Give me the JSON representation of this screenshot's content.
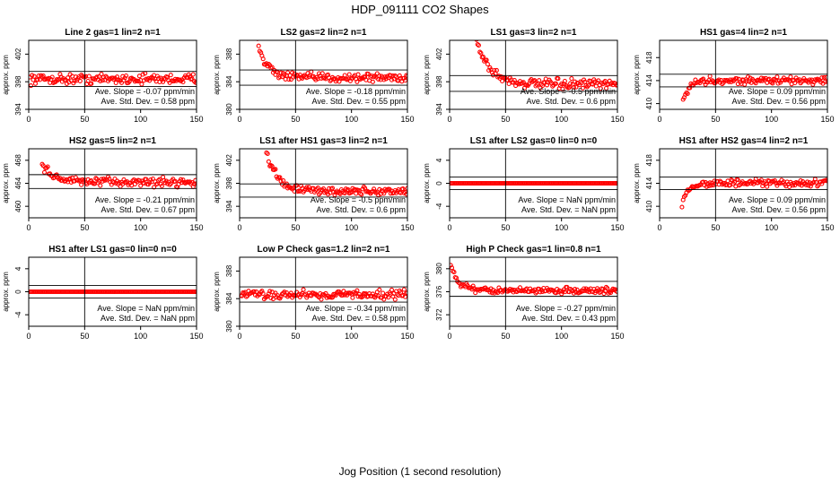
{
  "title": "HDP_091111  CO2 Shapes",
  "xlabel": "Jog Position (1 second resolution)",
  "ylabel": "approx. ppm",
  "slope_prefix": "Ave. Slope = ",
  "slope_unit": " ppm/min",
  "std_prefix": "Ave. Std. Dev. = ",
  "std_unit": " ppm",
  "colors": {
    "points": "#ff0000",
    "axis": "#000000"
  },
  "chart_data": [
    {
      "type": "scatter",
      "title": "Line 2 gas=1 lin=2 n=1",
      "xlim": [
        0,
        150
      ],
      "ylim": [
        394,
        404
      ],
      "xticks": [
        0,
        50,
        100,
        150
      ],
      "yticks": [
        394,
        398,
        402
      ],
      "vline": 50,
      "hlines": [
        397.3,
        399.5
      ],
      "start": 1,
      "base": 398.4,
      "decay": 0,
      "noise": 0.6,
      "slope": "-0.07",
      "std": "0.58"
    },
    {
      "type": "scatter",
      "title": "LS2 gas=2 lin=2 n=1",
      "xlim": [
        0,
        150
      ],
      "ylim": [
        380,
        390
      ],
      "xticks": [
        0,
        50,
        100,
        150
      ],
      "yticks": [
        380,
        384,
        388
      ],
      "vline": 50,
      "hlines": [
        383.5,
        385.7
      ],
      "start": 16,
      "base": 384.6,
      "decay": 5.5,
      "tau": 8,
      "noise": 0.55,
      "slope": "-0.18",
      "std": "0.55"
    },
    {
      "type": "scatter",
      "title": "LS1 gas=3 lin=2 n=1",
      "xlim": [
        0,
        150
      ],
      "ylim": [
        394,
        404
      ],
      "xticks": [
        0,
        50,
        100,
        150
      ],
      "yticks": [
        394,
        398,
        402
      ],
      "vline": 50,
      "hlines": [
        396.6,
        398.9
      ],
      "start": 24,
      "base": 397.6,
      "decay": 6.5,
      "tau": 12,
      "noise": 0.6,
      "slope": "-0.5",
      "std": "0.6"
    },
    {
      "type": "scatter",
      "title": "HS1 gas=4 lin=2 n=1",
      "xlim": [
        0,
        150
      ],
      "ylim": [
        409,
        421
      ],
      "xticks": [
        0,
        50,
        100,
        150
      ],
      "yticks": [
        410,
        414,
        418
      ],
      "vline": 50,
      "hlines": [
        412.9,
        415.1
      ],
      "start": 21,
      "base": 414.0,
      "decay": -3.5,
      "tau": 5,
      "noise": 0.55,
      "slope": "0.09",
      "std": "0.56"
    },
    {
      "type": "scatter",
      "title": "HS2 gas=5 lin=2 n=1",
      "xlim": [
        0,
        150
      ],
      "ylim": [
        458,
        470
      ],
      "xticks": [
        0,
        50,
        100,
        150
      ],
      "yticks": [
        460,
        464,
        468
      ],
      "vline": 50,
      "hlines": [
        463.1,
        465.5
      ],
      "start": 12,
      "base": 464.2,
      "decay": 3.2,
      "tau": 10,
      "noise": 0.65,
      "slope": "-0.21",
      "std": "0.67"
    },
    {
      "type": "scatter",
      "title": "LS1 after HS1 gas=3 lin=2 n=1",
      "xlim": [
        0,
        150
      ],
      "ylim": [
        392,
        404
      ],
      "xticks": [
        0,
        50,
        100,
        150
      ],
      "yticks": [
        394,
        398,
        402
      ],
      "vline": 50,
      "hlines": [
        395.6,
        397.9
      ],
      "start": 23,
      "base": 396.6,
      "decay": 7.5,
      "tau": 10,
      "noise": 0.6,
      "slope": "-0.5",
      "std": "0.6"
    },
    {
      "type": "scatter",
      "title": "LS1 after LS2 gas=0 lin=0 n=0",
      "xlim": [
        0,
        150
      ],
      "ylim": [
        -6,
        6
      ],
      "xticks": [
        0,
        50,
        100,
        150
      ],
      "yticks": [
        -4,
        0,
        4
      ],
      "vline": 50,
      "hlines": [
        -1.1,
        1.1
      ],
      "start": 1,
      "base": 0,
      "decay": 0,
      "noise": 0,
      "slope": "NaN",
      "std": "NaN"
    },
    {
      "type": "scatter",
      "title": "HS1 after HS2 gas=4 lin=2 n=1",
      "xlim": [
        0,
        150
      ],
      "ylim": [
        408,
        420
      ],
      "xticks": [
        0,
        50,
        100,
        150
      ],
      "yticks": [
        410,
        414,
        418
      ],
      "vline": 50,
      "hlines": [
        412.9,
        415.1
      ],
      "start": 20,
      "base": 414.0,
      "decay": -3.5,
      "tau": 5,
      "noise": 0.55,
      "slope": "0.09",
      "std": "0.56"
    },
    {
      "type": "scatter",
      "title": "HS1 after LS1 gas=0 lin=0 n=0",
      "xlim": [
        0,
        150
      ],
      "ylim": [
        -6,
        6
      ],
      "xticks": [
        0,
        50,
        100,
        150
      ],
      "yticks": [
        -4,
        0,
        4
      ],
      "vline": 50,
      "hlines": [
        -1.1,
        1.1
      ],
      "start": 1,
      "base": 0,
      "decay": 0,
      "noise": 0,
      "slope": "NaN",
      "std": "NaN"
    },
    {
      "type": "scatter",
      "title": "Low P Check gas=1.2 lin=2 n=1",
      "xlim": [
        0,
        150
      ],
      "ylim": [
        380,
        390
      ],
      "xticks": [
        0,
        50,
        100,
        150
      ],
      "yticks": [
        380,
        384,
        388
      ],
      "vline": 50,
      "hlines": [
        383.5,
        385.7
      ],
      "start": 1,
      "base": 384.6,
      "decay": 0,
      "noise": 0.55,
      "slope": "-0.34",
      "std": "0.58"
    },
    {
      "type": "scatter",
      "title": "High P Check gas=1 lin=0.8 n=1",
      "xlim": [
        0,
        150
      ],
      "ylim": [
        370,
        382
      ],
      "xticks": [
        0,
        50,
        100,
        150
      ],
      "yticks": [
        372,
        376,
        380
      ],
      "vline": 50,
      "hlines": [
        375.2,
        377.8
      ],
      "start": 1,
      "base": 376.2,
      "decay": 4.5,
      "tau": 7,
      "noise": 0.45,
      "slope": "-0.27",
      "std": "0.43"
    }
  ]
}
